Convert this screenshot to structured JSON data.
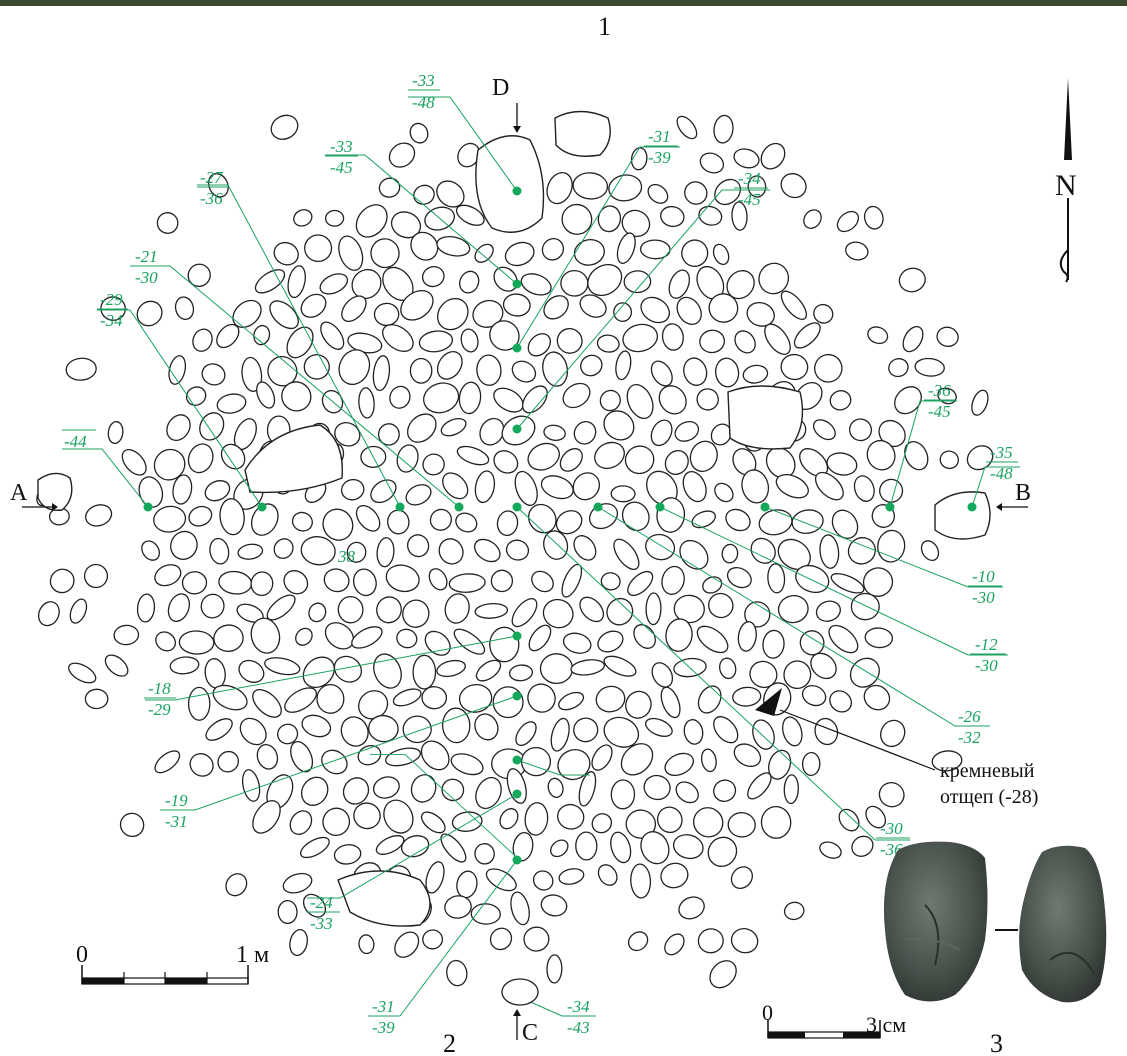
{
  "figure": {
    "panel_labels": {
      "main": "1",
      "profile": "2",
      "flake": "3"
    },
    "compass": {
      "north_label": "N"
    },
    "section_markers": {
      "west": "A",
      "east": "B",
      "south": "C",
      "north": "D"
    },
    "scale_bars": {
      "plan": {
        "start": "0",
        "end": "1 м"
      },
      "flake": {
        "start": "0",
        "end": "3 см"
      }
    },
    "annotation": {
      "line1": "кремневый",
      "line2": "отщеп (-28)"
    },
    "depth_labels": [
      {
        "top": "-33",
        "bottom": "-48"
      },
      {
        "top": "-33",
        "bottom": "-45"
      },
      {
        "top": "-27",
        "bottom": "-36"
      },
      {
        "top": "-21",
        "bottom": "-30"
      },
      {
        "top": "-29",
        "bottom": "-34"
      },
      {
        "top": "",
        "bottom": "-44"
      },
      {
        "top": "-31",
        "bottom": "-39"
      },
      {
        "top": "-34",
        "bottom": "-45"
      },
      {
        "top": "-36",
        "bottom": "-45"
      },
      {
        "top": "-35",
        "bottom": "-48"
      },
      {
        "top": "-10",
        "bottom": "-30"
      },
      {
        "top": "-12",
        "bottom": "-30"
      },
      {
        "top": "-26",
        "bottom": "-32"
      },
      {
        "top": "-30",
        "bottom": "-36"
      },
      {
        "top": "-18",
        "bottom": "-29"
      },
      {
        "top": "-19",
        "bottom": "-31"
      },
      {
        "top": "-24",
        "bottom": "-33"
      },
      {
        "top": "-31",
        "bottom": "-39"
      },
      {
        "top": "-34",
        "bottom": "-43"
      }
    ],
    "loose_label": "38",
    "colors": {
      "points": "#1aa260",
      "ink": "#111111"
    }
  }
}
